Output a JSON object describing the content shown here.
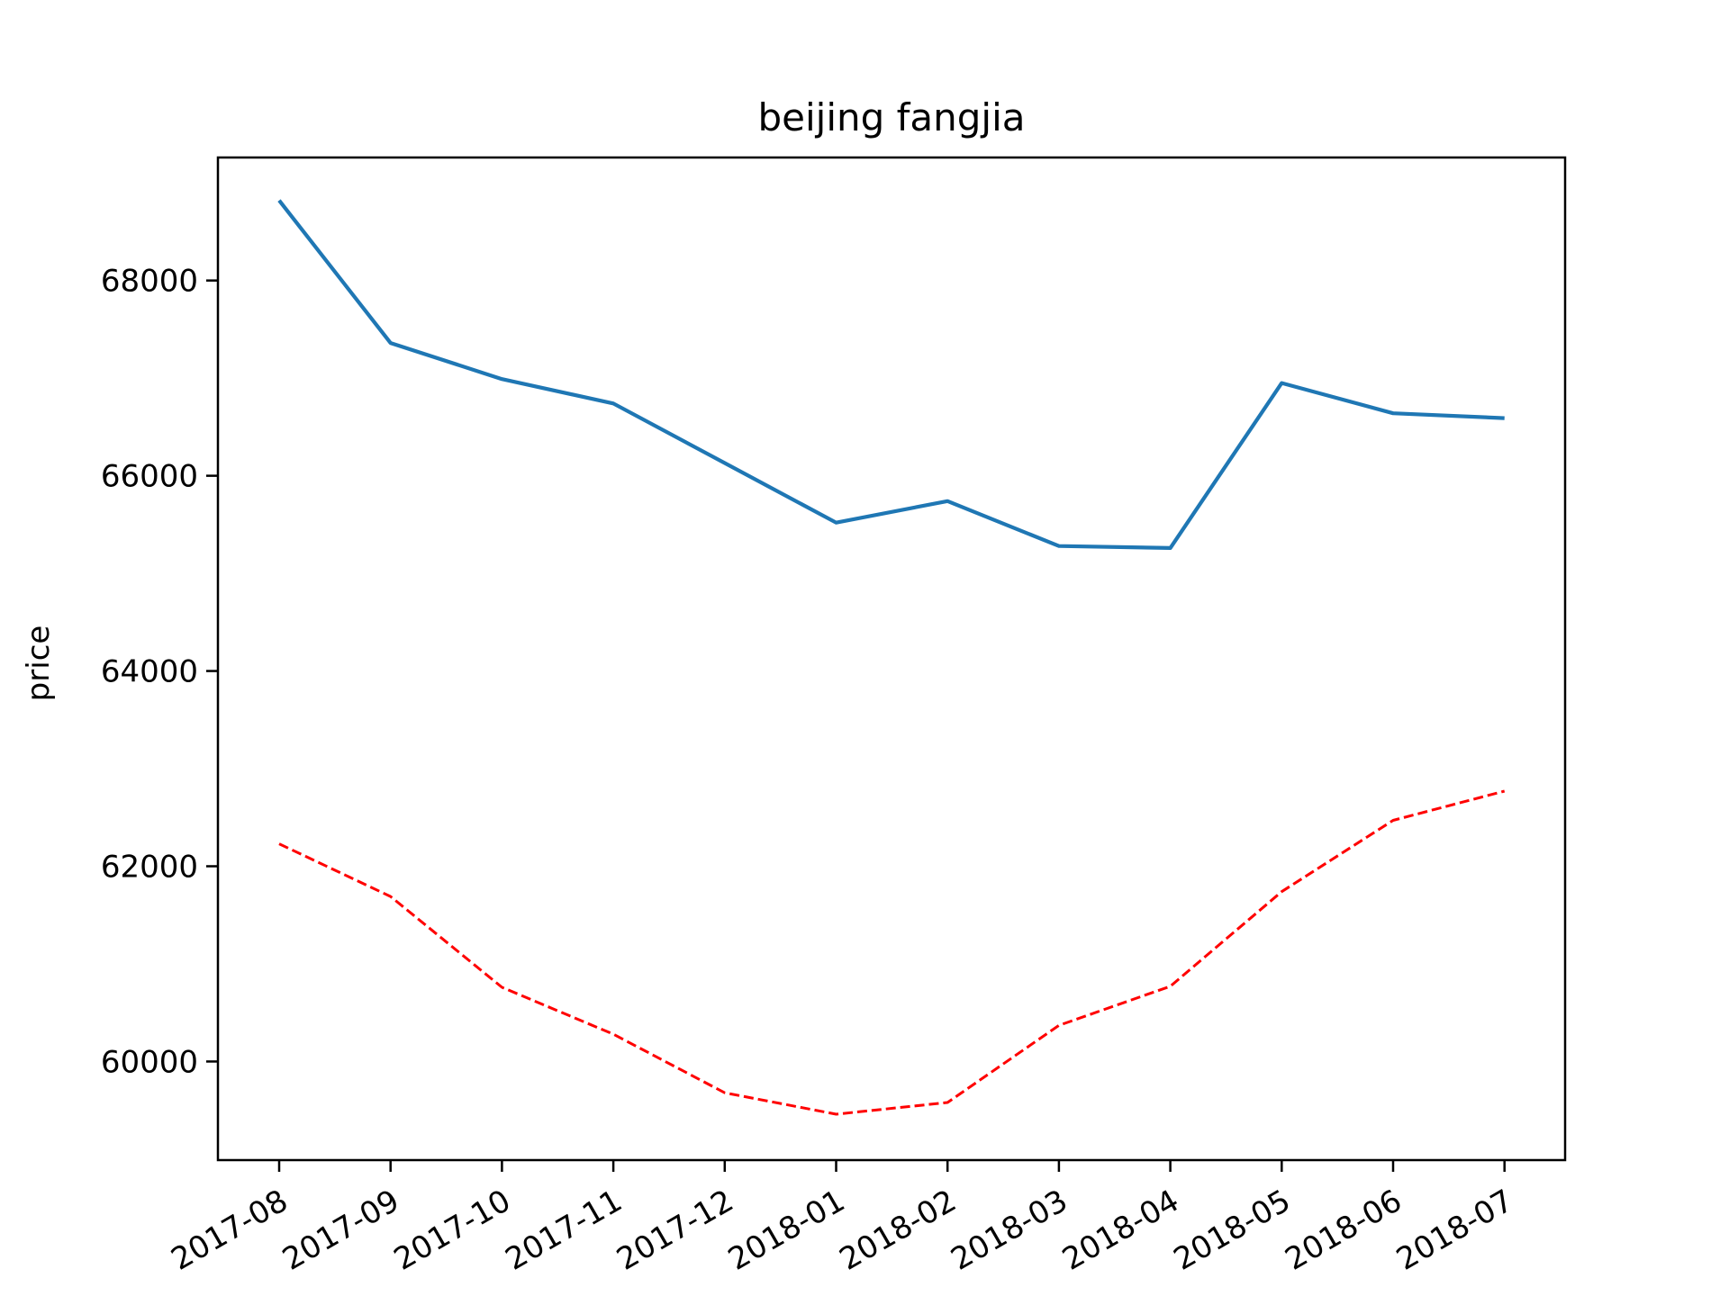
{
  "chart_data": {
    "type": "line",
    "title": "beijing fangjia",
    "xlabel": "",
    "ylabel": "price",
    "categories": [
      "2017-08",
      "2017-09",
      "2017-10",
      "2017-11",
      "2017-12",
      "2018-01",
      "2018-02",
      "2018-03",
      "2018-04",
      "2018-05",
      "2018-06",
      "2018-07"
    ],
    "ylim": [
      58990,
      69260
    ],
    "yticks": [
      60000,
      62000,
      64000,
      66000,
      68000
    ],
    "ytick_labels": [
      "60000",
      "62000",
      "64000",
      "66000",
      "68000"
    ],
    "grid": false,
    "legend": "none",
    "series": [
      {
        "name": "series-1",
        "color": "#1f77b4",
        "style": "solid",
        "values": [
          68820,
          67360,
          66990,
          66740,
          66130,
          65520,
          65740,
          65280,
          65260,
          66950,
          66640,
          66590
        ]
      },
      {
        "name": "series-2",
        "color": "#ff0000",
        "style": "dashed",
        "values": [
          62230,
          61690,
          60760,
          60280,
          59680,
          59460,
          59580,
          60370,
          60770,
          61740,
          62470,
          62770
        ]
      }
    ]
  }
}
